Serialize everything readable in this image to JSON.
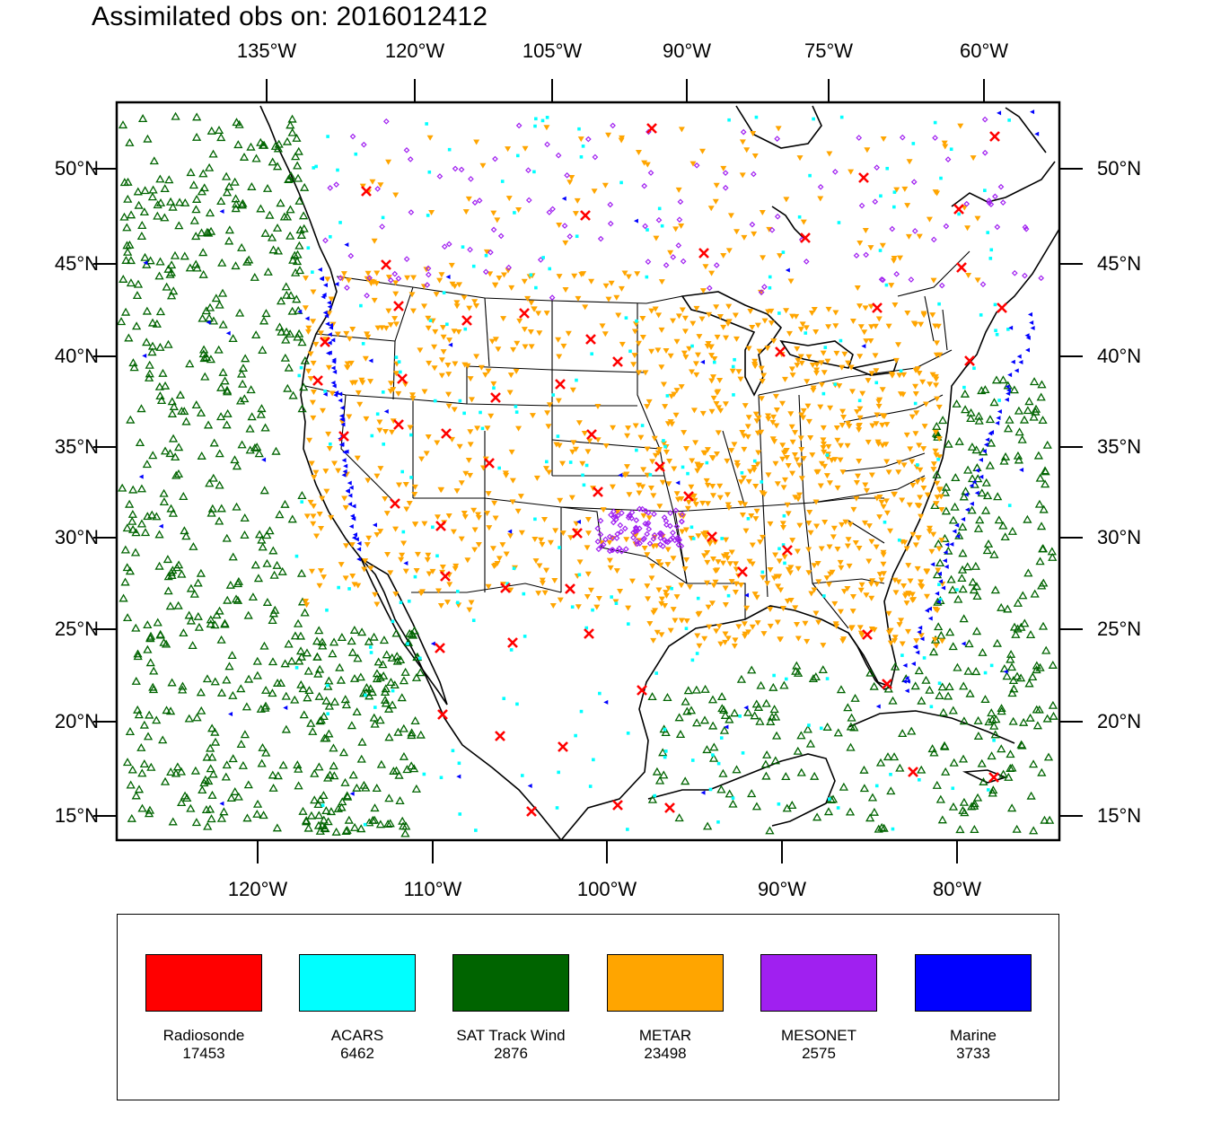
{
  "title": "Assimilated obs on: 2016012412",
  "top_ticks": [
    "135°W",
    "120°W",
    "105°W",
    "90°W",
    "75°W",
    "60°W"
  ],
  "bottom_ticks": [
    "120°W",
    "110°W",
    "100°W",
    "90°W",
    "80°W"
  ],
  "left_ticks": [
    "50°N",
    "45°N",
    "40°N",
    "35°N",
    "30°N",
    "25°N",
    "20°N",
    "15°N"
  ],
  "right_ticks": [
    "50°N",
    "45°N",
    "40°N",
    "35°N",
    "30°N",
    "25°N",
    "20°N",
    "15°N"
  ],
  "legend": [
    {
      "label": "Radiosonde",
      "count": "17453",
      "color": "#ff0000",
      "marker": "x"
    },
    {
      "label": "ACARS",
      "count": "6462",
      "color": "#00ffff",
      "marker": "square"
    },
    {
      "label": "SAT Track Wind",
      "count": "2876",
      "color": "#006400",
      "marker": "triangle-up"
    },
    {
      "label": "METAR",
      "count": "23498",
      "color": "#ffa500",
      "marker": "triangle-down"
    },
    {
      "label": "MESONET",
      "count": "2575",
      "color": "#a020f0",
      "marker": "diamond"
    },
    {
      "label": "Marine",
      "count": "3733",
      "color": "#0000ff",
      "marker": "triangle-left"
    }
  ]
}
